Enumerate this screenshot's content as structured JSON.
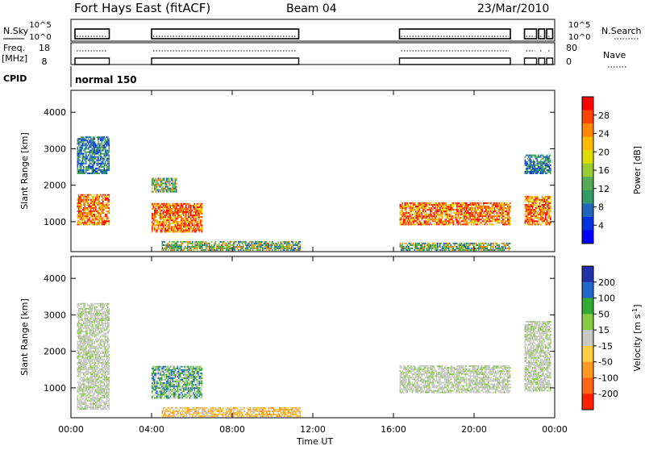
{
  "header": {
    "station": "Fort Hays East (fitACF)",
    "beam": "Beam 04",
    "date": "23/Mar/2010"
  },
  "params": {
    "nsky_label": "N.Sky",
    "nsky_ticks": [
      "10^5",
      "10^0"
    ],
    "nsearch_label": "N.Search",
    "freq_label": "Freq.",
    "freq_unit": "[MHz]",
    "freq_ticks": [
      "18",
      "8"
    ],
    "nave_label": "Nave",
    "nave_ticks": [
      "80",
      "0"
    ],
    "cpid_label": "CPID",
    "cpid_value": "normal 150"
  },
  "colorbars": {
    "power": {
      "label": "Power [dB]",
      "ticks": [
        "28",
        "24",
        "20",
        "16",
        "12",
        "8",
        "4"
      ],
      "colors": [
        "#ff0000",
        "#ff4400",
        "#ff8800",
        "#ffbb00",
        "#dddd00",
        "#99cc33",
        "#55aa55",
        "#339966",
        "#2266bb",
        "#0033dd",
        "#0000ff"
      ]
    },
    "velocity": {
      "label": "Velocity [m s",
      "label_sup": "-1",
      "label_end": "]",
      "ticks": [
        "200",
        "100",
        "50",
        "15",
        "-15",
        "-50",
        "-100",
        "-200"
      ],
      "colors": [
        "#2233aa",
        "#2266cc",
        "#33aa33",
        "#88cc44",
        "#c8c8c4",
        "#ffcc44",
        "#ff9922",
        "#ff6611",
        "#ff2200"
      ]
    }
  },
  "chart_data": [
    {
      "type": "heatmap",
      "title": "Power",
      "xlabel": "Time UT",
      "ylabel": "Slant Range [km]",
      "x_ticks": [
        "00:00",
        "04:00",
        "08:00",
        "12:00",
        "16:00",
        "20:00",
        "00:00"
      ],
      "y_ticks": [
        "1000",
        "2000",
        "3000",
        "4000"
      ],
      "xlim": [
        0,
        24
      ],
      "ylim": [
        180,
        4600
      ],
      "regions": [
        {
          "t": [
            0.3,
            1.9
          ],
          "r": [
            900,
            1750
          ],
          "level": "high"
        },
        {
          "t": [
            0.3,
            1.9
          ],
          "r": [
            2300,
            3300
          ],
          "level": "low"
        },
        {
          "t": [
            4.0,
            6.5
          ],
          "r": [
            700,
            1500
          ],
          "level": "high"
        },
        {
          "t": [
            4.0,
            5.2
          ],
          "r": [
            1800,
            2200
          ],
          "level": "mid"
        },
        {
          "t": [
            4.5,
            11.4
          ],
          "r": [
            200,
            450
          ],
          "level": "mid"
        },
        {
          "t": [
            16.3,
            21.8
          ],
          "r": [
            900,
            1500
          ],
          "level": "high"
        },
        {
          "t": [
            16.3,
            21.8
          ],
          "r": [
            200,
            420
          ],
          "level": "mid"
        },
        {
          "t": [
            22.5,
            23.8
          ],
          "r": [
            900,
            1700
          ],
          "level": "high"
        },
        {
          "t": [
            22.5,
            23.8
          ],
          "r": [
            2300,
            2800
          ],
          "level": "low"
        }
      ]
    },
    {
      "type": "heatmap",
      "title": "Velocity",
      "xlabel": "Time UT",
      "ylabel": "Slant Range [km]",
      "x_ticks": [
        "00:00",
        "04:00",
        "08:00",
        "12:00",
        "16:00",
        "20:00",
        "00:00"
      ],
      "y_ticks": [
        "1000",
        "2000",
        "3000",
        "4000"
      ],
      "xlim": [
        0,
        24
      ],
      "ylim": [
        180,
        4600
      ],
      "regions": [
        {
          "t": [
            0.3,
            1.9
          ],
          "r": [
            400,
            3300
          ],
          "level": "ground"
        },
        {
          "t": [
            4.0,
            6.5
          ],
          "r": [
            700,
            1600
          ],
          "level": "positive"
        },
        {
          "t": [
            4.5,
            11.4
          ],
          "r": [
            200,
            450
          ],
          "level": "negative"
        },
        {
          "t": [
            16.3,
            21.8
          ],
          "r": [
            850,
            1600
          ],
          "level": "ground"
        },
        {
          "t": [
            22.5,
            23.8
          ],
          "r": [
            900,
            2800
          ],
          "level": "ground"
        }
      ]
    }
  ]
}
